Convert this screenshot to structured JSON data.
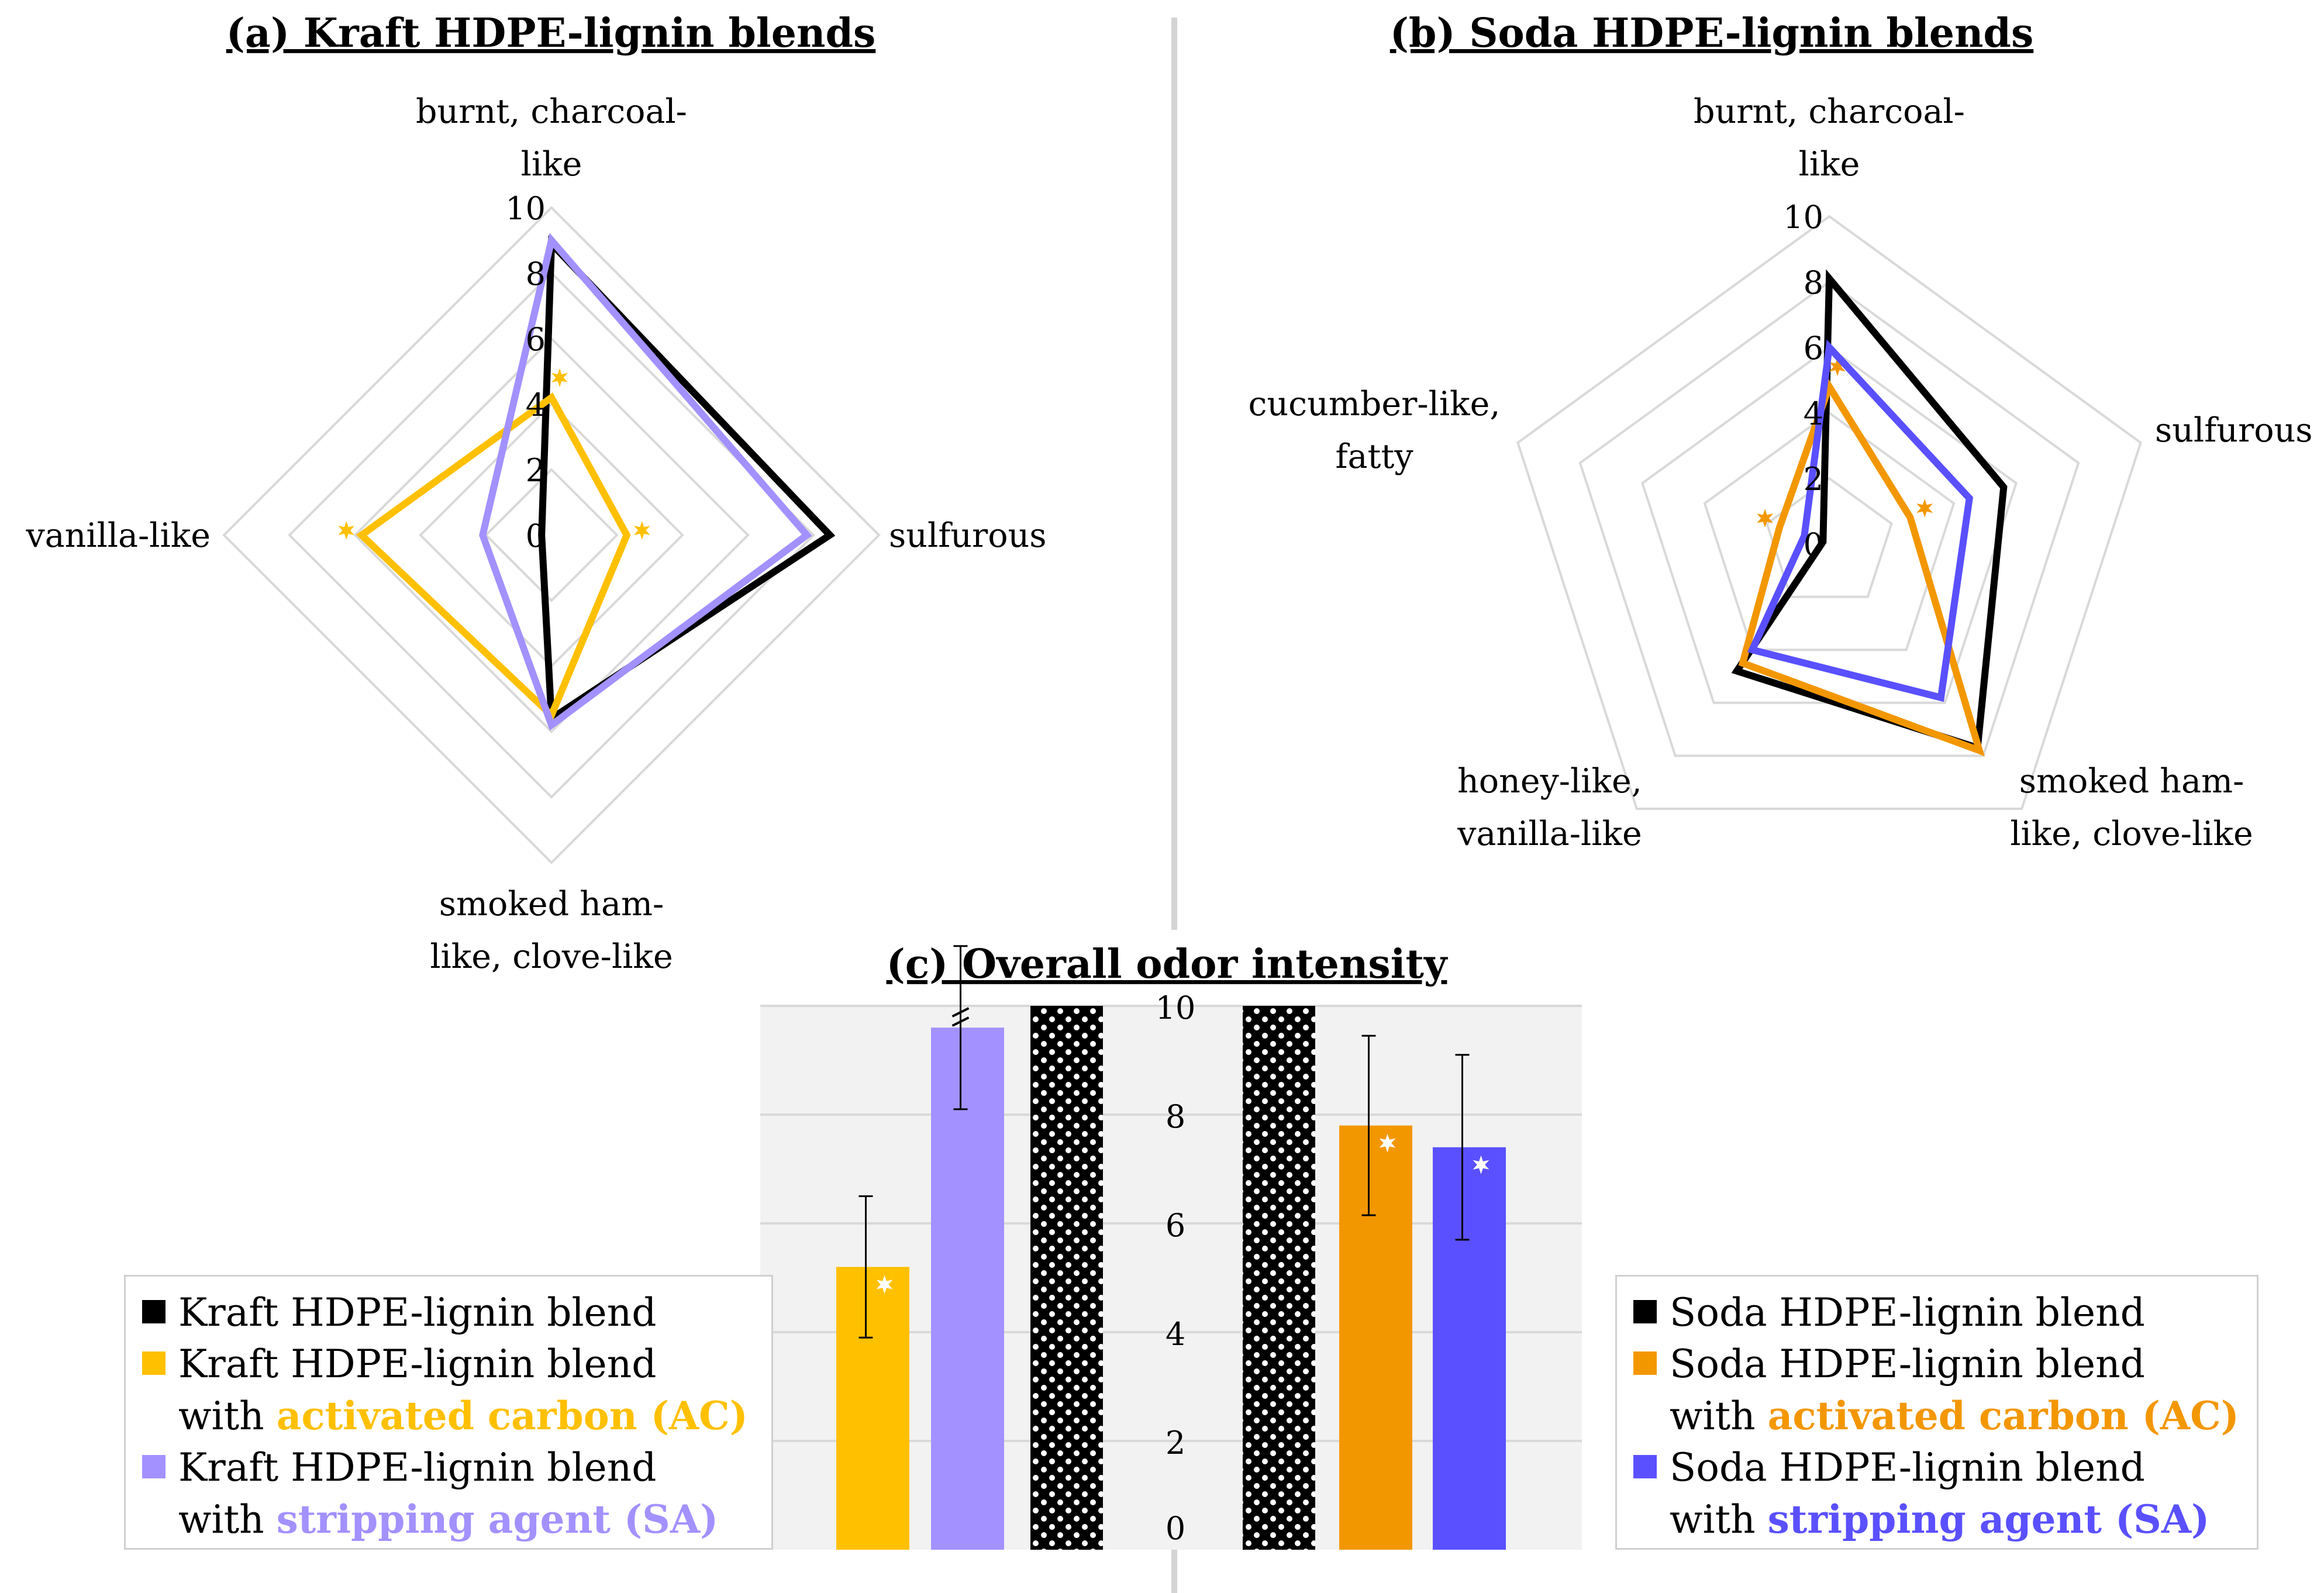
{
  "chart_data": [
    {
      "id": "radar_a",
      "type": "radar",
      "title": "(a) Kraft HDPE-lignin blends",
      "axes": [
        "burnt, charcoal-like",
        "sulfurous",
        "smoked ham-like, clove-like",
        "vanilla-like"
      ],
      "axis_label_lines": [
        [
          "burnt, charcoal-",
          "like"
        ],
        [
          "sulfurous"
        ],
        [
          "smoked ham-",
          "like, clove-like"
        ],
        [
          "vanilla-like"
        ]
      ],
      "range": [
        0,
        10
      ],
      "ticks": [
        "0",
        "2",
        "4",
        "6",
        "8",
        "10"
      ],
      "series": [
        {
          "name": "Kraft HDPE-lignin blend",
          "color": "#000000",
          "values": [
            8.9,
            8.5,
            5.6,
            0.3
          ]
        },
        {
          "name": "Kraft HDPE-lignin blend with activated carbon (AC)",
          "color": "#FFC000",
          "values": [
            4.2,
            2.3,
            5.5,
            5.8
          ],
          "significant": [
            true,
            true,
            false,
            true
          ]
        },
        {
          "name": "Kraft HDPE-lignin blend with stripping agent (SA)",
          "color": "#A391FF",
          "values": [
            9.0,
            7.8,
            5.8,
            2.1
          ]
        }
      ]
    },
    {
      "id": "radar_b",
      "type": "radar",
      "title": "(b) Soda HDPE-lignin blends",
      "axes": [
        "burnt, charcoal-like",
        "sulfurous",
        "smoked ham-like, clove-like",
        "honey-like, vanilla-like",
        "cucumber-like, fatty"
      ],
      "axis_label_lines": [
        [
          "burnt, charcoal-",
          "like"
        ],
        [
          "sulfurous"
        ],
        [
          "smoked ham-",
          "like, clove-like"
        ],
        [
          "honey-like,",
          "vanilla-like"
        ],
        [
          "cucumber-like,",
          "fatty"
        ]
      ],
      "range": [
        0,
        10
      ],
      "ticks": [
        "0",
        "2",
        "4",
        "6",
        "8",
        "10"
      ],
      "series": [
        {
          "name": "Soda HDPE-lignin blend",
          "color": "#000000",
          "values": [
            8.1,
            5.6,
            7.7,
            4.8,
            0.2
          ]
        },
        {
          "name": "Soda HDPE-lignin blend with activated carbon (AC)",
          "color": "#F39700",
          "values": [
            4.8,
            2.6,
            7.8,
            4.5,
            1.6
          ],
          "significant": [
            true,
            true,
            false,
            false,
            true
          ]
        },
        {
          "name": "Soda HDPE-lignin blend with stripping agent (SA)",
          "color": "#5A50FF",
          "values": [
            6.0,
            4.5,
            5.8,
            4.0,
            0.8
          ]
        }
      ]
    },
    {
      "id": "bar_c",
      "type": "bar",
      "title": "(c) Overall odor intensity",
      "ylim": [
        0,
        10
      ],
      "yticks": [
        "0",
        "2",
        "4",
        "6",
        "8",
        "10"
      ],
      "groups": [
        {
          "name": "Kraft",
          "bars": [
            {
              "label": "Kraft HDPE-lignin blend",
              "value": 10,
              "pattern": "dots",
              "exceeds_axis": true
            },
            {
              "label": "Kraft HDPE-lignin blend with activated carbon (AC)",
              "value": 5.2,
              "error": 1.3,
              "color": "#FFC000",
              "significant": true
            },
            {
              "label": "Kraft HDPE-lignin blend with stripping agent (SA)",
              "value": 9.6,
              "error": 1.5,
              "color": "#A391FF",
              "axis_break": true
            }
          ]
        },
        {
          "name": "Soda",
          "bars": [
            {
              "label": "Soda HDPE-lignin blend",
              "value": 10,
              "pattern": "dots",
              "exceeds_axis": true
            },
            {
              "label": "Soda HDPE-lignin blend with activated carbon (AC)",
              "value": 7.8,
              "error": 1.65,
              "color": "#F39700",
              "significant": true
            },
            {
              "label": "Soda HDPE-lignin blend with stripping agent (SA)",
              "value": 7.4,
              "error": 1.7,
              "color": "#5A50FF",
              "significant": true
            }
          ]
        }
      ]
    }
  ],
  "legend_kraft": {
    "items": [
      {
        "color": "#000000",
        "line1": "Kraft HDPE-lignin blend"
      },
      {
        "color": "#FFC000",
        "line1": "Kraft HDPE-lignin blend",
        "prefix": "with ",
        "highlight": "activated carbon (AC)"
      },
      {
        "color": "#A391FF",
        "line1": "Kraft HDPE-lignin blend",
        "prefix": "with ",
        "highlight": "stripping agent (SA)"
      }
    ]
  },
  "legend_soda": {
    "items": [
      {
        "color": "#000000",
        "line1": "Soda HDPE-lignin blend"
      },
      {
        "color": "#F39700",
        "line1": "Soda HDPE-lignin blend",
        "prefix": "with ",
        "highlight": "activated carbon (AC)"
      },
      {
        "color": "#5A50FF",
        "line1": "Soda HDPE-lignin blend",
        "prefix": "with ",
        "highlight": "stripping agent (SA)"
      }
    ]
  },
  "colors": {
    "grid": "#d9d9d9",
    "divider": "#d9d9d9",
    "plot_bg": "#f2f2f2"
  }
}
